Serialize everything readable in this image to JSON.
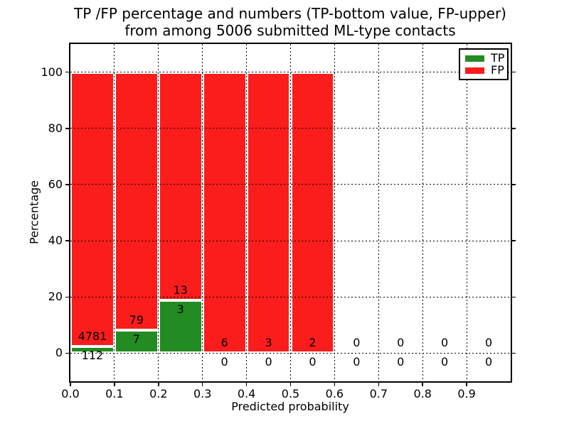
{
  "chart_data": {
    "type": "bar",
    "stacked": true,
    "title_line1": "TP /FP percentage and numbers (TP-bottom value, FP-upper)",
    "title_line2": "from among 5006 submitted ML-type contacts",
    "xlabel": "Predicted probability",
    "ylabel": "Percentage",
    "xlim": [
      0.0,
      1.0
    ],
    "ylim": [
      -10,
      110
    ],
    "yticks": [
      0,
      20,
      40,
      60,
      80,
      100
    ],
    "xtick_labels": [
      "0.0",
      "0.1",
      "0.2",
      "0.3",
      "0.4",
      "0.5",
      "0.6",
      "0.7",
      "0.8",
      "0.9"
    ],
    "grid": true,
    "grid_style": "dotted",
    "legend_position": "upper right",
    "series": [
      {
        "name": "TP",
        "color": "#228b22"
      },
      {
        "name": "FP",
        "color": "#fb1c1c"
      }
    ],
    "bins": [
      {
        "range": [
          0.0,
          0.1
        ],
        "tp": 112,
        "fp": 4781,
        "tp_pct": 2.29,
        "fp_pct": 97.71
      },
      {
        "range": [
          0.1,
          0.2
        ],
        "tp": 7,
        "fp": 79,
        "tp_pct": 8.14,
        "fp_pct": 91.86
      },
      {
        "range": [
          0.2,
          0.3
        ],
        "tp": 3,
        "fp": 13,
        "tp_pct": 18.75,
        "fp_pct": 81.25
      },
      {
        "range": [
          0.3,
          0.4
        ],
        "tp": 0,
        "fp": 6,
        "tp_pct": 0,
        "fp_pct": 100
      },
      {
        "range": [
          0.4,
          0.5
        ],
        "tp": 0,
        "fp": 3,
        "tp_pct": 0,
        "fp_pct": 100
      },
      {
        "range": [
          0.5,
          0.6
        ],
        "tp": 0,
        "fp": 2,
        "tp_pct": 0,
        "fp_pct": 100
      },
      {
        "range": [
          0.6,
          0.7
        ],
        "tp": 0,
        "fp": 0,
        "tp_pct": 0,
        "fp_pct": 0
      },
      {
        "range": [
          0.7,
          0.8
        ],
        "tp": 0,
        "fp": 0,
        "tp_pct": 0,
        "fp_pct": 0
      },
      {
        "range": [
          0.8,
          0.9
        ],
        "tp": 0,
        "fp": 0,
        "tp_pct": 0,
        "fp_pct": 0
      },
      {
        "range": [
          0.9,
          1.0
        ],
        "tp": 0,
        "fp": 0,
        "tp_pct": 0,
        "fp_pct": 0
      }
    ]
  }
}
